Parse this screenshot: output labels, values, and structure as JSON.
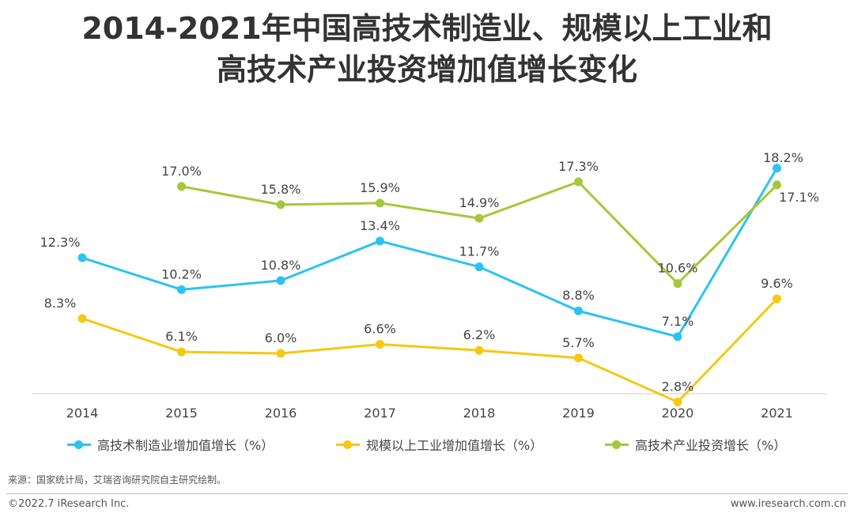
{
  "header": {
    "title_line1": "2014-2021年中国高技术制造业、规模以上工业和",
    "title_line2": "高技术产业投资增加值增长变化"
  },
  "chart_data": {
    "type": "line",
    "categories": [
      "2014",
      "2015",
      "2016",
      "2017",
      "2018",
      "2019",
      "2020",
      "2021"
    ],
    "series": [
      {
        "name": "高技术制造业增加值增长（%）",
        "color": "#2CC3EF",
        "values": [
          12.3,
          10.2,
          10.8,
          13.4,
          11.7,
          8.8,
          7.1,
          18.2
        ],
        "labels": [
          "12.3%",
          "10.2%",
          "10.8%",
          "13.4%",
          "11.7%",
          "8.8%",
          "7.1%",
          "18.2%"
        ]
      },
      {
        "name": "规模以上工业增加值增长（%）",
        "color": "#F5C813",
        "values": [
          8.3,
          6.1,
          6.0,
          6.6,
          6.2,
          5.7,
          2.8,
          9.6
        ],
        "labels": [
          "8.3%",
          "6.1%",
          "6.0%",
          "6.6%",
          "6.2%",
          "5.7%",
          "2.8%",
          "9.6%"
        ]
      },
      {
        "name": "高技术产业投资增长（%）",
        "color": "#A5C83A",
        "values": [
          null,
          17.0,
          15.8,
          15.9,
          14.9,
          17.3,
          10.6,
          17.1
        ],
        "labels": [
          null,
          "17.0%",
          "15.8%",
          "15.9%",
          "14.9%",
          "17.3%",
          "10.6%",
          "17.1%"
        ]
      }
    ],
    "xlabel": "",
    "ylabel": "",
    "grid": false,
    "legend": "bottom"
  },
  "footer": {
    "source": "来源：国家统计局，艾瑞咨询研究院自主研究绘制。",
    "copyright": "©2022.7 iResearch Inc.",
    "website": "www.iresearch.com.cn"
  }
}
